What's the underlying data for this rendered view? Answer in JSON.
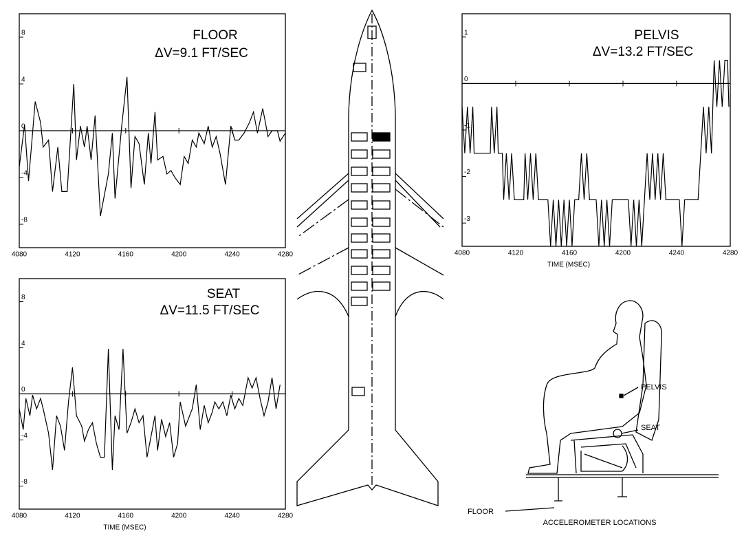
{
  "chart_data": [
    {
      "type": "line",
      "title": "FLOOR",
      "annotation": "ΔV=9.1 FT/SEC",
      "color": "#000000",
      "x": [
        4080,
        4084,
        4087,
        4092,
        4096,
        4098,
        4102,
        4105,
        4109,
        4112,
        4116,
        4121,
        4123,
        4126,
        4129,
        4131,
        4134,
        4137,
        4141,
        4147,
        4150,
        4152,
        4157,
        4161,
        4164,
        4167,
        4170,
        4174,
        4177,
        4179,
        4182,
        4184,
        4188,
        4191,
        4194,
        4197,
        4201,
        4204,
        4207,
        4210,
        4213,
        4215,
        4219,
        4222,
        4225,
        4228,
        4231,
        4235,
        4239,
        4242,
        4245,
        4249,
        4253,
        4256,
        4259,
        4263,
        4267,
        4270,
        4274,
        4276,
        4280
      ],
      "values": [
        -3.1,
        0.5,
        -4.3,
        2.5,
        0.7,
        -1.4,
        -0.8,
        -5.2,
        -1.4,
        -5.2,
        -5.2,
        4,
        -2.5,
        0.4,
        -1.4,
        0.4,
        -2.5,
        1.3,
        -7.3,
        -3.7,
        -0.2,
        -5.8,
        0.4,
        4.6,
        -4.9,
        -0.5,
        -1.1,
        -4.6,
        -0.2,
        -2.8,
        1.6,
        -2.5,
        -2.2,
        -3.7,
        -3.4,
        -4,
        -4.6,
        -2.2,
        -2.8,
        -0.8,
        -1.4,
        -0.2,
        -1.1,
        0.4,
        -1.4,
        -0.5,
        -2,
        -4.6,
        0.4,
        -0.8,
        -0.8,
        -0.2,
        0.7,
        1.6,
        -0.2,
        1.9,
        -0.5,
        0,
        0,
        -0.9,
        -0.2
      ],
      "xlim": [
        4080,
        4280
      ],
      "xticks": [
        4080,
        4120,
        4160,
        4200,
        4240,
        4280
      ],
      "ylim": [
        -10,
        10
      ],
      "yticks": [
        -8,
        -4,
        0,
        4,
        8
      ]
    },
    {
      "type": "line",
      "title": "SEAT",
      "annotation": "ΔV=11.5 FT/SEC",
      "xlabel": "TIME   (MSEC)",
      "color": "#000000",
      "x": [
        4080,
        4083,
        4085,
        4088,
        4090,
        4093,
        4096,
        4098,
        4102,
        4105,
        4108,
        4111,
        4114,
        4117,
        4120,
        4123,
        4127,
        4129,
        4132,
        4135,
        4138,
        4141,
        4144,
        4147,
        4150,
        4152,
        4155,
        4158,
        4161,
        4164,
        4167,
        4170,
        4173,
        4176,
        4179,
        4182,
        4184,
        4187,
        4190,
        4193,
        4196,
        4199,
        4201,
        4205,
        4208,
        4210,
        4213,
        4216,
        4219,
        4222,
        4225,
        4227,
        4230,
        4233,
        4236,
        4239,
        4242,
        4245,
        4248,
        4252,
        4255,
        4258,
        4261,
        4264,
        4267,
        4270,
        4273,
        4276
      ],
      "values": [
        -1.3,
        -3.1,
        -0.4,
        -1.9,
        -0.1,
        -1.3,
        -0.4,
        -1.3,
        -3.4,
        -6.6,
        -1.9,
        -2.8,
        -4.9,
        -0.7,
        2.3,
        -1.9,
        -2.8,
        -4.1,
        -3.1,
        -2.5,
        -4.3,
        -5.5,
        -5.5,
        3.9,
        -6.6,
        -1.9,
        -3.1,
        3.9,
        -3.4,
        -2.5,
        -1.3,
        -2.5,
        -1.9,
        -5.5,
        -3.7,
        -1.9,
        -4.9,
        -2.2,
        -3.7,
        -2.5,
        -5.5,
        -4.3,
        -0.7,
        -2.8,
        -1.9,
        -1.3,
        0.8,
        -3.1,
        -1,
        -2.5,
        -1.6,
        -0.7,
        -1.3,
        -0.7,
        -1.9,
        -0.1,
        -1.3,
        -0.4,
        -1,
        1.4,
        0.5,
        1.4,
        -0.4,
        -1.9,
        -0.7,
        1.4,
        -1.3,
        0.8
      ],
      "xlim": [
        4080,
        4280
      ],
      "xticks": [
        4080,
        4120,
        4160,
        4200,
        4240,
        4280
      ],
      "ylim": [
        -10,
        10
      ],
      "yticks": [
        -8,
        -4,
        0,
        4,
        8
      ]
    },
    {
      "type": "line",
      "title": "PELVIS",
      "annotation": "ΔV=13.2 FT/SEC",
      "xlabel": "TIME   (MSEC)",
      "color": "#000000",
      "x": [
        4080,
        4082,
        4084,
        4086,
        4088,
        4089,
        4101,
        4102,
        4104,
        4106,
        4107,
        4110,
        4111,
        4113,
        4115,
        4117,
        4119,
        4126,
        4127,
        4129,
        4131,
        4133,
        4135,
        4137,
        4139,
        4144,
        4146,
        4148,
        4150,
        4152,
        4154,
        4156,
        4158,
        4160,
        4162,
        4164,
        4167,
        4169,
        4171,
        4173,
        4175,
        4180,
        4182,
        4184,
        4186,
        4188,
        4190,
        4192,
        4204,
        4206,
        4208,
        4210,
        4212,
        4214,
        4216,
        4218,
        4220,
        4222,
        4224,
        4226,
        4228,
        4230,
        4232,
        4242,
        4244,
        4246,
        4256,
        4258,
        4260,
        4262,
        4264,
        4266,
        4268,
        4270,
        4272,
        4274,
        4276,
        4278,
        4279
      ],
      "values": [
        -0.5,
        -1.5,
        -0.5,
        -1.5,
        -0.5,
        -1.5,
        -1.5,
        -0.5,
        -1.5,
        -0.5,
        -1.5,
        -1.5,
        -2.5,
        -1.5,
        -2.5,
        -1.5,
        -2.5,
        -2.5,
        -1.5,
        -2.5,
        -1.5,
        -2.5,
        -1.5,
        -2.5,
        -2.5,
        -2.5,
        -3.5,
        -2.5,
        -3.5,
        -2.5,
        -3.5,
        -2.5,
        -3.5,
        -2.5,
        -3.5,
        -2.5,
        -2.5,
        -1.5,
        -2.5,
        -1.5,
        -2.5,
        -2.5,
        -3.5,
        -2.5,
        -3.5,
        -2.5,
        -3.5,
        -2.5,
        -2.5,
        -3.5,
        -2.5,
        -3.5,
        -2.5,
        -3.5,
        -2.5,
        -1.5,
        -2.5,
        -1.5,
        -2.5,
        -1.5,
        -2.5,
        -1.5,
        -2.5,
        -2.5,
        -3.5,
        -2.5,
        -2.5,
        -1.5,
        -0.5,
        -1.5,
        -0.5,
        -1.5,
        0.5,
        -0.5,
        0.5,
        -0.5,
        0.5,
        0.5,
        -0.5
      ],
      "xlim": [
        4080,
        4280
      ],
      "xticks": [
        4080,
        4120,
        4160,
        4200,
        4240,
        4280
      ],
      "ylim": [
        -3.5,
        1.5
      ],
      "yticks": [
        -3,
        -2,
        -1,
        0,
        1
      ]
    }
  ],
  "diagram": {
    "title": "ACCELEROMETER LOCATIONS",
    "labels": [
      "PELVIS",
      "SEAT",
      "FLOOR"
    ]
  }
}
